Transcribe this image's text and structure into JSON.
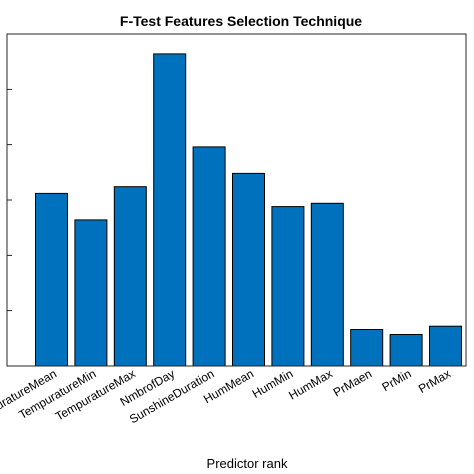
{
  "chart_data": {
    "type": "bar",
    "title": "F-Test Features Selection Technique",
    "xlabel": "Predictor rank",
    "ylabel": "",
    "categories": [
      "TempuratureMean",
      "TempuratureMin",
      "TempuratureMax",
      "NmbrofDay",
      "SunshineDuration",
      "HumMean",
      "HumMin",
      "HumMax",
      "PrMaen",
      "PrMin",
      "PrMax"
    ],
    "values": [
      0.52,
      0.44,
      0.54,
      0.94,
      0.66,
      0.58,
      0.48,
      0.49,
      0.11,
      0.095,
      0.12
    ],
    "ylim": [
      0,
      1
    ],
    "y_ticks": [
      0,
      0.167,
      0.333,
      0.5,
      0.667,
      0.833,
      1
    ],
    "bar_color": "#0072BD",
    "grid": false,
    "legend": "none"
  }
}
